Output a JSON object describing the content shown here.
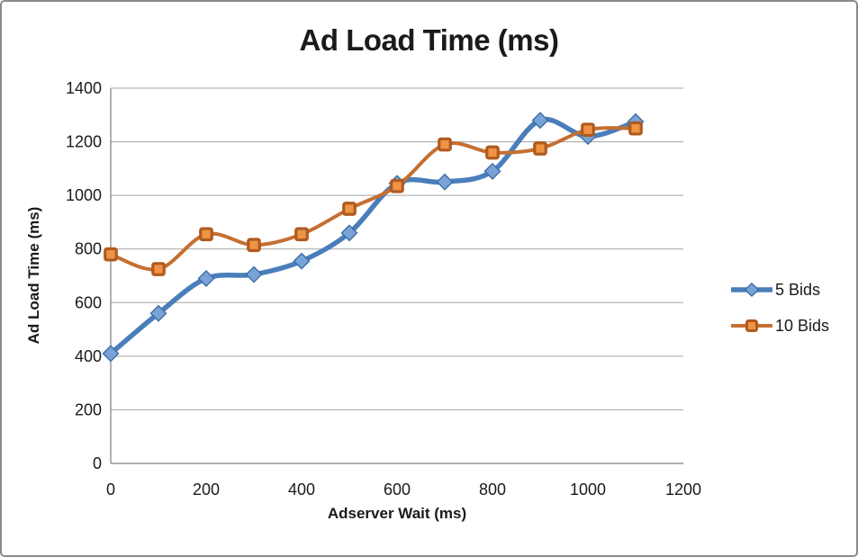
{
  "chart_data": {
    "type": "line",
    "title": "Ad Load Time (ms)",
    "xlabel": "Adserver Wait (ms)",
    "ylabel": "Ad Load Time (ms)",
    "x": [
      0,
      100,
      200,
      300,
      400,
      500,
      600,
      700,
      800,
      900,
      1000,
      1100
    ],
    "series": [
      {
        "name": "5 Bids",
        "marker": "diamond",
        "line_color": "#4A7EBB",
        "marker_fill": "#79A3D6",
        "marker_stroke": "#3C6EA5",
        "line_width": 5.5,
        "values": [
          410,
          560,
          690,
          705,
          755,
          860,
          1045,
          1050,
          1090,
          1280,
          1220,
          1275
        ]
      },
      {
        "name": "10 Bids",
        "marker": "square",
        "line_color": "#C46F31",
        "marker_fill": "#EE9444",
        "marker_stroke": "#B05A1F",
        "line_width": 4,
        "values": [
          780,
          725,
          855,
          815,
          855,
          950,
          1035,
          1190,
          1160,
          1175,
          1245,
          1250
        ]
      }
    ],
    "xlim": [
      0,
      1200
    ],
    "ylim": [
      0,
      1400
    ],
    "x_ticks": [
      0,
      200,
      400,
      600,
      800,
      1000,
      1200
    ],
    "y_ticks": [
      0,
      200,
      400,
      600,
      800,
      1000,
      1200,
      1400
    ],
    "grid": true,
    "smooth_lines": true,
    "legend_position": "right",
    "colors": {
      "gridline": "#A3A3A3",
      "axis": "#7F7F7F",
      "text": "#1A1A1A",
      "frame_border": "#8A8A8A",
      "background": "#FFFFFF"
    }
  }
}
